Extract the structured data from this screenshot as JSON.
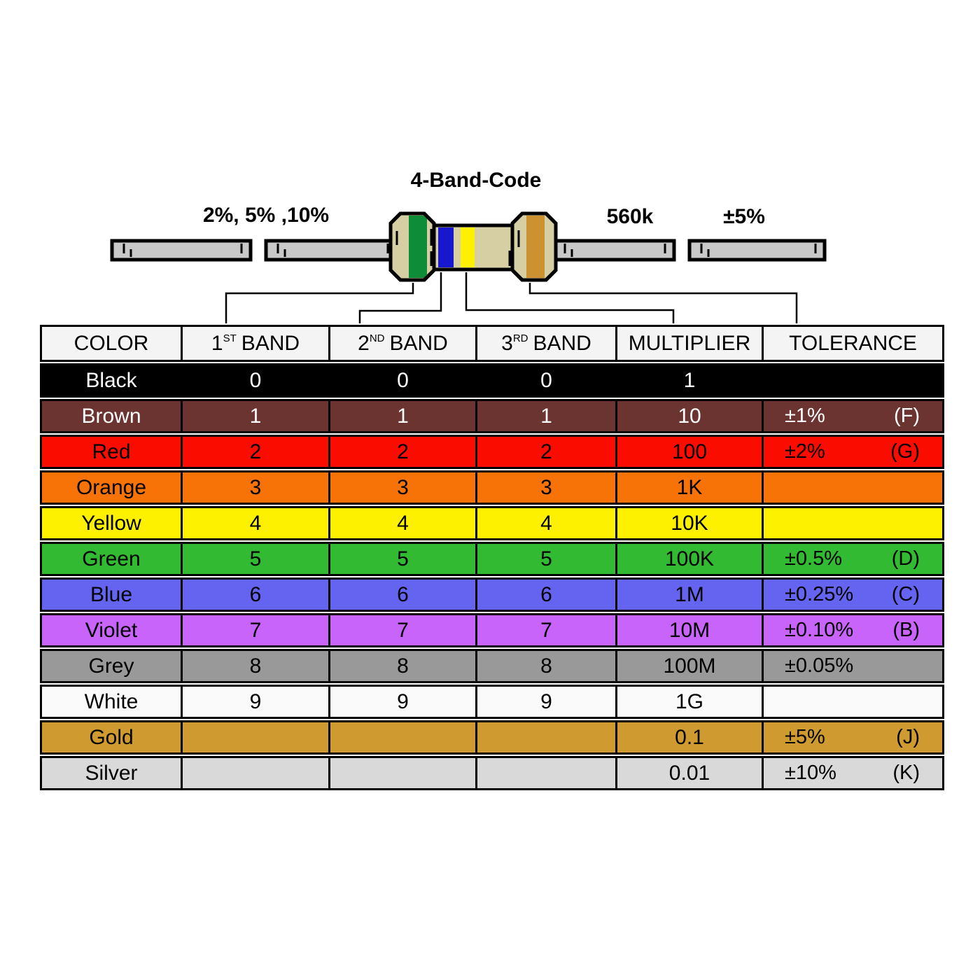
{
  "title": "4-Band-Code",
  "annotations": {
    "tolerance_examples": "2%, 5% ,10%",
    "resistance_value": "560k",
    "tolerance_value": "±5%"
  },
  "resistor": {
    "body_color": "#d6cfa4",
    "lead_color": "#c9c9c9",
    "outline_color": "#000000",
    "bands": [
      {
        "name": "first-band-green",
        "color": "#0e8c38"
      },
      {
        "name": "second-band-blue",
        "color": "#1717cd"
      },
      {
        "name": "multiplier-band-yellow",
        "color": "#fdf000"
      },
      {
        "name": "tolerance-band-gold",
        "color": "#cc9130"
      }
    ]
  },
  "table": {
    "header_bg": "#f4f4f4",
    "headers": [
      {
        "label": "COLOR"
      },
      {
        "num": "1",
        "sup": "ST",
        "label": "BAND"
      },
      {
        "num": "2",
        "sup": "ND",
        "label": "BAND"
      },
      {
        "num": "3",
        "sup": "RD",
        "label": "BAND"
      },
      {
        "label": "MULTIPLIER"
      },
      {
        "label": "TOLERANCE"
      }
    ],
    "rows": [
      {
        "name": "Black",
        "bg": "#000000",
        "fg": "#ffffff",
        "band1": "0",
        "band2": "0",
        "band3": "0",
        "multiplier": "1",
        "tol": "",
        "tol_code": ""
      },
      {
        "name": "Brown",
        "bg": "#6b3431",
        "fg": "#ffffff",
        "band1": "1",
        "band2": "1",
        "band3": "1",
        "multiplier": "10",
        "tol": "±1%",
        "tol_code": "(F)"
      },
      {
        "name": "Red",
        "bg": "#fb0c00",
        "fg": "#000000",
        "band1": "2",
        "band2": "2",
        "band3": "2",
        "multiplier": "100",
        "tol": "±2%",
        "tol_code": "(G)"
      },
      {
        "name": "Orange",
        "bg": "#f87307",
        "fg": "#000000",
        "band1": "3",
        "band2": "3",
        "band3": "3",
        "multiplier": "1K",
        "tol": "",
        "tol_code": ""
      },
      {
        "name": "Yellow",
        "bg": "#fdf100",
        "fg": "#000000",
        "band1": "4",
        "band2": "4",
        "band3": "4",
        "multiplier": "10K",
        "tol": "",
        "tol_code": ""
      },
      {
        "name": "Green",
        "bg": "#32ba32",
        "fg": "#000000",
        "band1": "5",
        "band2": "5",
        "band3": "5",
        "multiplier": "100K",
        "tol": "±0.5%",
        "tol_code": "(D)"
      },
      {
        "name": "Blue",
        "bg": "#6464f0",
        "fg": "#000000",
        "band1": "6",
        "band2": "6",
        "band3": "6",
        "multiplier": "1M",
        "tol": "±0.25%",
        "tol_code": "(C)"
      },
      {
        "name": "Violet",
        "bg": "#c964fb",
        "fg": "#000000",
        "band1": "7",
        "band2": "7",
        "band3": "7",
        "multiplier": "10M",
        "tol": "±0.10%",
        "tol_code": "(B)"
      },
      {
        "name": "Grey",
        "bg": "#999999",
        "fg": "#000000",
        "band1": "8",
        "band2": "8",
        "band3": "8",
        "multiplier": "100M",
        "tol": "±0.05%",
        "tol_code": ""
      },
      {
        "name": "White",
        "bg": "#fafafa",
        "fg": "#000000",
        "band1": "9",
        "band2": "9",
        "band3": "9",
        "multiplier": "1G",
        "tol": "",
        "tol_code": ""
      },
      {
        "name": "Gold",
        "bg": "#cf9a30",
        "fg": "#000000",
        "band1": "",
        "band2": "",
        "band3": "",
        "multiplier": "0.1",
        "tol": "±5%",
        "tol_code": "(J)"
      },
      {
        "name": "Silver",
        "bg": "#d9d9d9",
        "fg": "#000000",
        "band1": "",
        "band2": "",
        "band3": "",
        "multiplier": "0.01",
        "tol": "±10%",
        "tol_code": "(K)"
      }
    ]
  }
}
